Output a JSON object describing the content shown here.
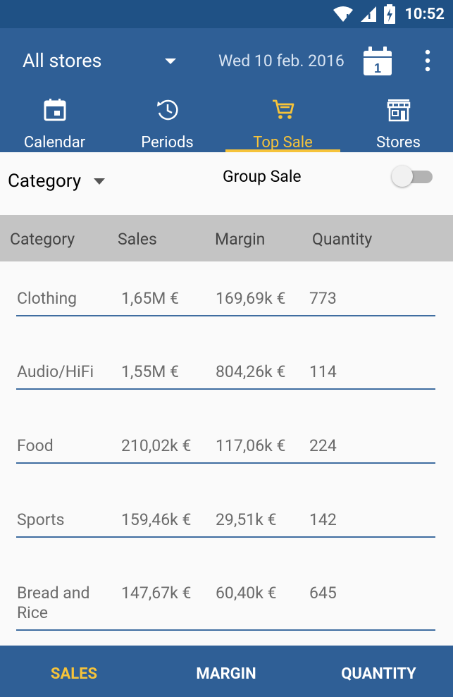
{
  "status_bar": {
    "time": "10:52"
  },
  "header": {
    "store_select": "All stores",
    "date": "Wed 10 feb. 2016",
    "calendar_day": "1"
  },
  "tabs": [
    {
      "label": "Calendar",
      "icon": "calendar-icon",
      "active": false
    },
    {
      "label": "Periods",
      "icon": "history-icon",
      "active": false
    },
    {
      "label": "Top Sale",
      "icon": "cart-icon",
      "active": true
    },
    {
      "label": "Stores",
      "icon": "store-icon",
      "active": false
    }
  ],
  "filter": {
    "category_select": "Category",
    "group_sale_label": "Group Sale",
    "group_sale_enabled": false
  },
  "table": {
    "columns": [
      "Category",
      "Sales",
      "Margin",
      "Quantity"
    ],
    "rows": [
      {
        "category": "Clothing",
        "sales": "1,65M €",
        "margin": "169,69k €",
        "quantity": "773"
      },
      {
        "category": "Audio/HiFi",
        "sales": "1,55M €",
        "margin": "804,26k €",
        "quantity": "114"
      },
      {
        "category": "Food",
        "sales": "210,02k €",
        "margin": "117,06k €",
        "quantity": "224"
      },
      {
        "category": "Sports",
        "sales": "159,46k €",
        "margin": "29,51k €",
        "quantity": "142"
      },
      {
        "category": "Bread and Rice",
        "sales": "147,67k €",
        "margin": "60,40k €",
        "quantity": "645"
      }
    ]
  },
  "bottom_nav": [
    {
      "label": "SALES",
      "active": true
    },
    {
      "label": "MARGIN",
      "active": false
    },
    {
      "label": "QUANTITY",
      "active": false
    }
  ],
  "colors": {
    "primary": "#2f5f96",
    "status_bar": "#1f5185",
    "accent": "#f6c33a",
    "header_row": "#c4c4c4",
    "row_divider": "#3f6da0"
  }
}
